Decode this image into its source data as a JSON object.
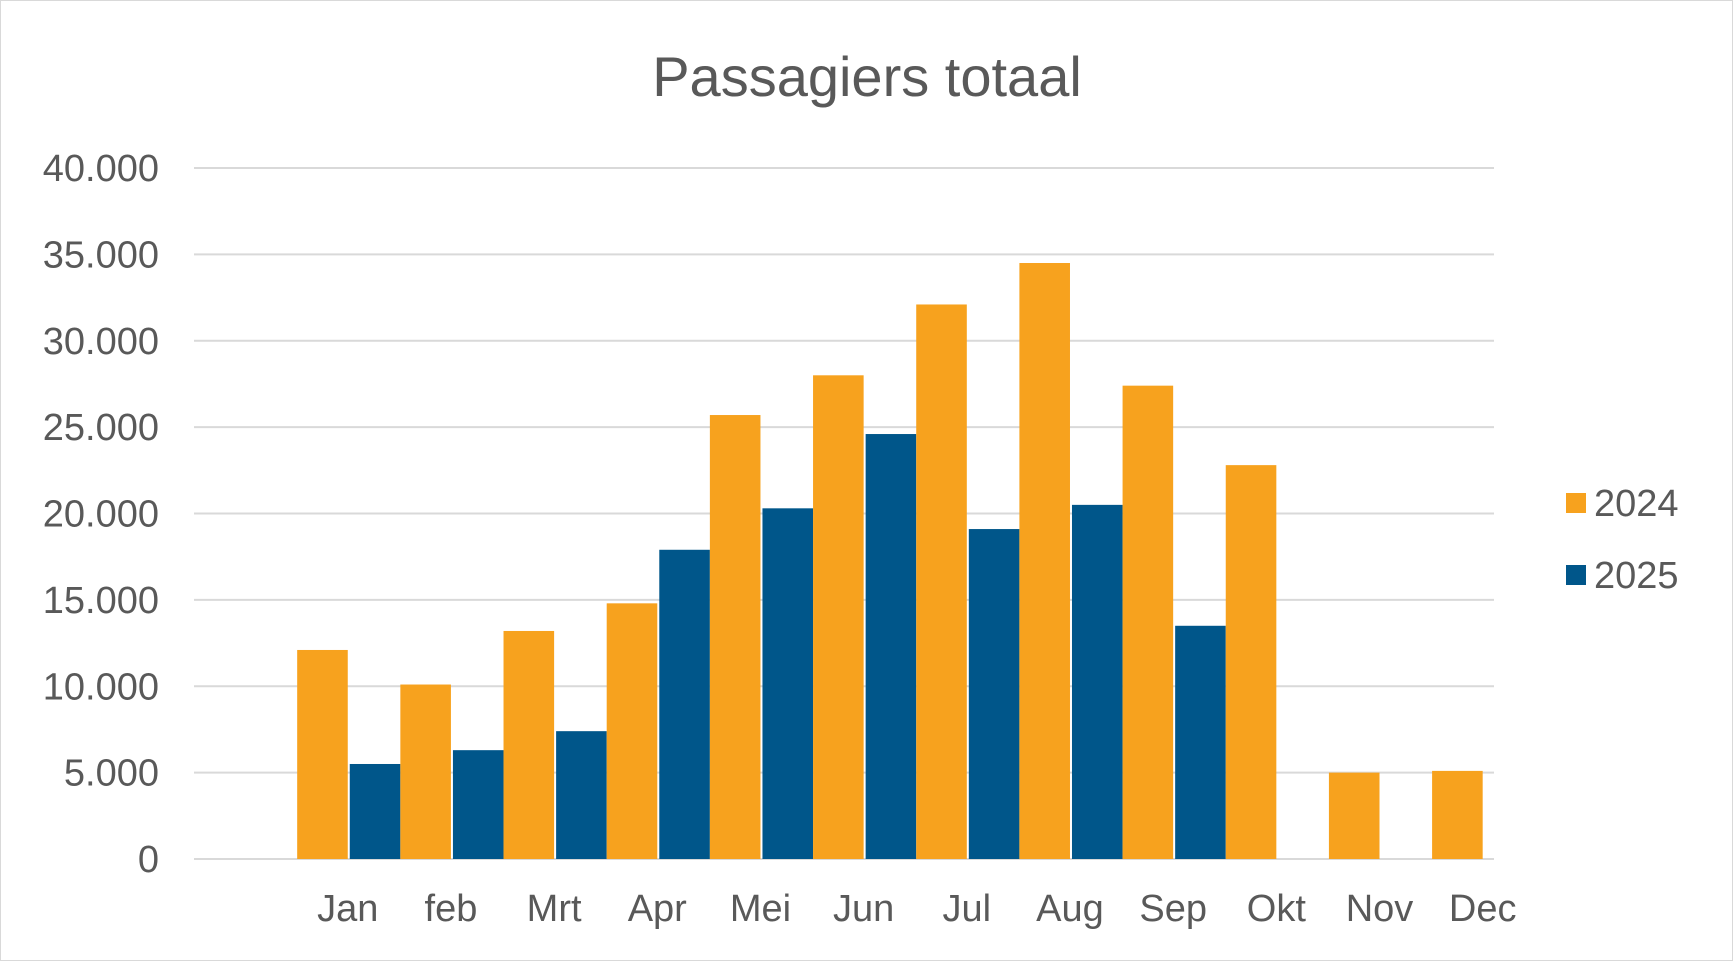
{
  "chart_data": {
    "type": "bar",
    "title": "Passagiers totaal",
    "xlabel": "",
    "ylabel": "",
    "ylim": [
      0,
      40000
    ],
    "yticks": [
      0,
      5000,
      10000,
      15000,
      20000,
      25000,
      30000,
      35000,
      40000
    ],
    "ytick_labels": [
      "0",
      "5.000",
      "10.000",
      "15.000",
      "20.000",
      "25.000",
      "30.000",
      "35.000",
      "40.000"
    ],
    "grid": true,
    "legend_position": "right",
    "categories": [
      "Jan",
      "feb",
      "Mrt",
      "Apr",
      "Mei",
      "Jun",
      "Jul",
      "Aug",
      "Sep",
      "Okt",
      "Nov",
      "Dec"
    ],
    "series": [
      {
        "name": "2024",
        "color": "#F7A21E",
        "values": [
          12100,
          10100,
          13200,
          14800,
          25700,
          28000,
          32100,
          34500,
          27400,
          22800,
          5000,
          5100
        ]
      },
      {
        "name": "2025",
        "color": "#00568A",
        "values": [
          5500,
          6300,
          7400,
          17900,
          20300,
          24600,
          19100,
          20500,
          13500,
          null,
          null,
          null
        ]
      }
    ]
  }
}
